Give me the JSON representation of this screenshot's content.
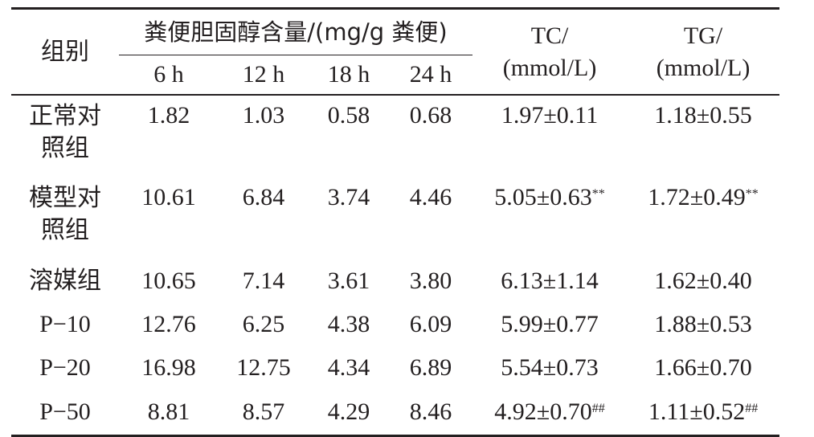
{
  "table": {
    "header": {
      "group_col": "组别",
      "feces_group": "粪便胆固醇含量/(mg/g 粪便)",
      "times": [
        "6 h",
        "12 h",
        "18 h",
        "24 h"
      ],
      "tc_line1": "TC/",
      "tc_line2": "(mmol/L)",
      "tg_line1": "TG/",
      "tg_line2": "(mmol/L)"
    },
    "rows": [
      {
        "group_line1": "正常对",
        "group_line2": "照组",
        "h6": "1.82",
        "h12": "1.03",
        "h18": "0.58",
        "h24": "0.68",
        "tc": "1.97±0.11",
        "tc_mark": "",
        "tg": "1.18±0.55",
        "tg_mark": ""
      },
      {
        "group_line1": "模型对",
        "group_line2": "照组",
        "h6": "10.61",
        "h12": "6.84",
        "h18": "3.74",
        "h24": "4.46",
        "tc": "5.05±0.63",
        "tc_mark": "**",
        "tg": "1.72±0.49",
        "tg_mark": "**"
      },
      {
        "group_line1": "溶媒组",
        "group_line2": "",
        "h6": "10.65",
        "h12": "7.14",
        "h18": "3.61",
        "h24": "3.80",
        "tc": "6.13±1.14",
        "tc_mark": "",
        "tg": "1.62±0.40",
        "tg_mark": ""
      },
      {
        "group_line1": "P−10",
        "group_line2": "",
        "h6": "12.76",
        "h12": "6.25",
        "h18": "4.38",
        "h24": "6.09",
        "tc": "5.99±0.77",
        "tc_mark": "",
        "tg": "1.88±0.53",
        "tg_mark": ""
      },
      {
        "group_line1": "P−20",
        "group_line2": "",
        "h6": "16.98",
        "h12": "12.75",
        "h18": "4.34",
        "h24": "6.89",
        "tc": "5.54±0.73",
        "tc_mark": "",
        "tg": "1.66±0.70",
        "tg_mark": ""
      },
      {
        "group_line1": "P−50",
        "group_line2": "",
        "h6": "8.81",
        "h12": "8.57",
        "h18": "4.29",
        "h24": "8.46",
        "tc": "4.92±0.70",
        "tc_mark": "##",
        "tg": "1.11±0.52",
        "tg_mark": "##"
      }
    ]
  }
}
